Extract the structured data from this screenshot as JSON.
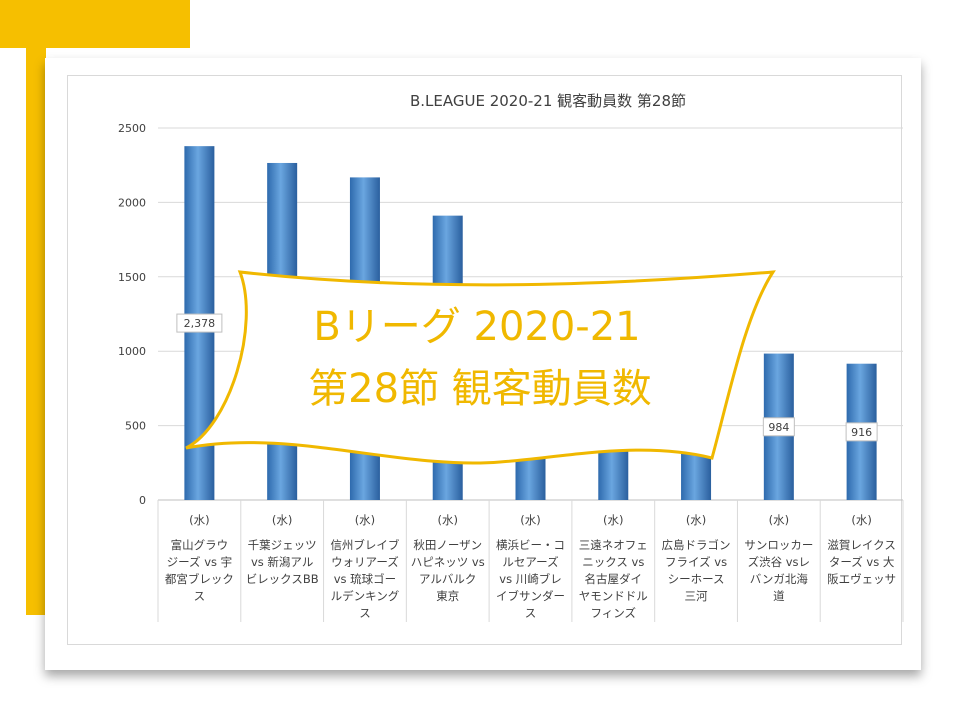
{
  "colors": {
    "accent": "#f6bf00",
    "bar": "#3f7fc2",
    "banner_text": "#f0b800",
    "banner_border": "#f0b800"
  },
  "banner": {
    "line1": "Bリーグ 2020-21",
    "line2": "第28節 観客動員数"
  },
  "chart_data": {
    "type": "bar",
    "title": "B.LEAGUE 2020-21 観客動員数 第28節",
    "xlabel": "",
    "ylabel": "",
    "ylim": [
      0,
      2500
    ],
    "yticks": [
      0,
      500,
      1000,
      1500,
      2000,
      2500
    ],
    "grid": true,
    "categories": [
      {
        "day": "(水)",
        "lines": [
          "富山グラウ",
          "ジーズ vs 宇",
          "都宮ブレック",
          "ス"
        ]
      },
      {
        "day": "(水)",
        "lines": [
          "千葉ジェッツ",
          "vs 新潟アル",
          "ビレックスBB"
        ]
      },
      {
        "day": "(水)",
        "lines": [
          "信州ブレイブ",
          "ウォリアーズ",
          "vs 琉球ゴー",
          "ルデンキング",
          "ス"
        ]
      },
      {
        "day": "(水)",
        "lines": [
          "秋田ノーザン",
          "ハピネッツ vs",
          "アルバルク",
          "東京"
        ]
      },
      {
        "day": "(水)",
        "lines": [
          "横浜ビー・コ",
          "ルセアーズ",
          "vs 川崎ブレ",
          "イブサンダー",
          "ス"
        ]
      },
      {
        "day": "(水)",
        "lines": [
          "三遠ネオフェ",
          "ニックス vs",
          "名古屋ダイ",
          "ヤモンドドル",
          "フィンズ"
        ]
      },
      {
        "day": "(水)",
        "lines": [
          "広島ドラゴン",
          "フライズ vs",
          "シーホース",
          "三河"
        ]
      },
      {
        "day": "(水)",
        "lines": [
          "サンロッカー",
          "ズ渋谷 vsレ",
          "バンガ北海",
          "道"
        ]
      },
      {
        "day": "(水)",
        "lines": [
          "滋賀レイクス",
          "ターズ vs 大",
          "阪エヴェッサ"
        ]
      }
    ],
    "values": [
      2378,
      2265,
      2168,
      1911,
      1050,
      1000,
      1000,
      984,
      916
    ],
    "data_labels": [
      {
        "index": 0,
        "text": "2,378"
      },
      {
        "index": 7,
        "text": "984"
      },
      {
        "index": 8,
        "text": "916"
      }
    ]
  }
}
